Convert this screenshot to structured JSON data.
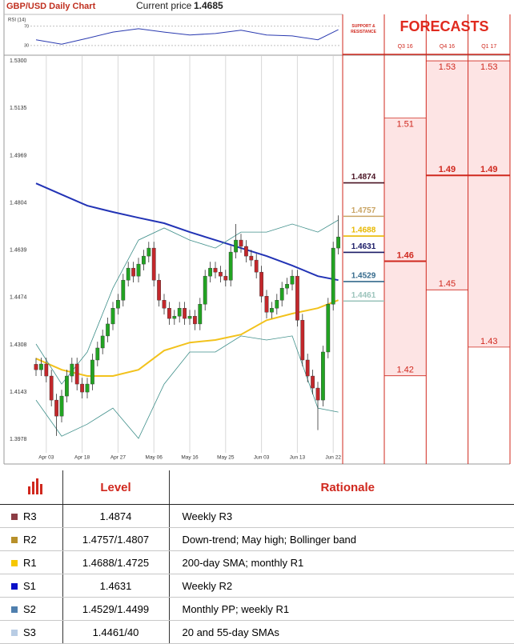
{
  "chart_data": [
    {
      "type": "candlestick",
      "title": "GBP/USD Daily Chart",
      "current_price_label": "Current price",
      "current_price": 1.4685,
      "categories": [
        null,
        null,
        "Apr 03",
        null,
        null,
        null,
        null,
        null,
        null,
        "Apr 18",
        null,
        null,
        null,
        null,
        null,
        null,
        "Apr 27",
        null,
        null,
        null,
        null,
        null,
        null,
        "May 06",
        null,
        null,
        null,
        null,
        null,
        null,
        "May 16",
        null,
        null,
        null,
        null,
        null,
        null,
        "May 25",
        null,
        null,
        null,
        null,
        null,
        null,
        "Jun 03",
        null,
        null,
        null,
        null,
        null,
        null,
        "Jun 13",
        null,
        null,
        null,
        null,
        null,
        null,
        "Jun 22",
        null
      ],
      "open": [
        1.424,
        1.4221,
        1.4241,
        1.4199,
        1.4115,
        1.4059,
        1.4129,
        1.4199,
        1.4241,
        1.4171,
        1.4143,
        1.4171,
        1.4255,
        1.4297,
        1.4339,
        1.4381,
        1.4436,
        1.4464,
        1.4534,
        1.4576,
        1.4548,
        1.459,
        1.4618,
        1.4646,
        1.4534,
        1.4464,
        1.4436,
        1.44,
        1.4408,
        1.4436,
        1.44,
        1.4408,
        1.4381,
        1.445,
        1.4548,
        1.4576,
        1.4562,
        1.4548,
        1.4534,
        1.4632,
        1.4674,
        1.4652,
        1.4618,
        1.4604,
        1.4562,
        1.4478,
        1.4422,
        1.4436,
        1.4464,
        1.4506,
        1.452,
        1.4548,
        1.4394,
        1.4255,
        1.4199,
        1.4157,
        1.4115,
        1.4283,
        1.445,
        1.4646
      ],
      "high": [
        1.4262,
        1.4263,
        1.4263,
        1.4221,
        1.4137,
        1.4151,
        1.4221,
        1.4263,
        1.4263,
        1.4193,
        1.4193,
        1.4277,
        1.4319,
        1.4361,
        1.4403,
        1.4458,
        1.4486,
        1.4556,
        1.4598,
        1.4598,
        1.4612,
        1.464,
        1.4668,
        1.4668,
        1.4556,
        1.4486,
        1.4458,
        1.443,
        1.4458,
        1.4458,
        1.443,
        1.443,
        1.4472,
        1.457,
        1.4598,
        1.4598,
        1.4584,
        1.457,
        1.4654,
        1.473,
        1.4696,
        1.4674,
        1.464,
        1.4626,
        1.4584,
        1.45,
        1.4458,
        1.4486,
        1.4528,
        1.4542,
        1.457,
        1.457,
        1.4416,
        1.4277,
        1.4221,
        1.4179,
        1.4305,
        1.4472,
        1.4668,
        1.476
      ],
      "low": [
        1.4199,
        1.4199,
        1.4177,
        1.4093,
        1.399,
        1.4037,
        1.4107,
        1.4177,
        1.4149,
        1.4121,
        1.4121,
        1.4149,
        1.4233,
        1.4275,
        1.4317,
        1.4359,
        1.4414,
        1.4442,
        1.4512,
        1.4526,
        1.4526,
        1.4568,
        1.4596,
        1.4512,
        1.4442,
        1.4414,
        1.4378,
        1.4378,
        1.4386,
        1.4378,
        1.4378,
        1.4359,
        1.4359,
        1.4428,
        1.4526,
        1.454,
        1.4526,
        1.4512,
        1.4512,
        1.461,
        1.463,
        1.4596,
        1.4582,
        1.454,
        1.4456,
        1.44,
        1.44,
        1.4414,
        1.4442,
        1.4484,
        1.4498,
        1.4372,
        1.4233,
        1.4177,
        1.4135,
        1.401,
        1.4093,
        1.4261,
        1.4428,
        1.4624
      ],
      "close": [
        1.4221,
        1.4241,
        1.4199,
        1.4115,
        1.4059,
        1.4129,
        1.4199,
        1.4241,
        1.4171,
        1.4143,
        1.4171,
        1.4255,
        1.4297,
        1.4339,
        1.4381,
        1.4436,
        1.4464,
        1.4534,
        1.4576,
        1.4548,
        1.459,
        1.4618,
        1.4646,
        1.4534,
        1.4464,
        1.4436,
        1.44,
        1.4408,
        1.4436,
        1.44,
        1.4408,
        1.4381,
        1.445,
        1.4548,
        1.4576,
        1.4562,
        1.4548,
        1.4534,
        1.4632,
        1.4674,
        1.4652,
        1.4618,
        1.4604,
        1.4562,
        1.4478,
        1.4422,
        1.4436,
        1.4464,
        1.4506,
        1.452,
        1.4548,
        1.4394,
        1.4255,
        1.4199,
        1.4157,
        1.4115,
        1.4283,
        1.445,
        1.4646,
        1.4685
      ],
      "up_color": "#22a322",
      "down_color": "#c3272b",
      "ylim": [
        1.3942,
        1.5317
      ],
      "yticks": [
        {
          "value": 1.53,
          "label": "1.5300"
        },
        1.5135,
        1.4969,
        1.4804,
        1.4639,
        1.4474,
        1.4308,
        1.4143,
        1.3978
      ],
      "grid": true,
      "overlays": [
        {
          "color": "#2233b5",
          "width": 2,
          "x": [
            0,
            5,
            10,
            15,
            20,
            25,
            30,
            35,
            40,
            45,
            50,
            55,
            59
          ],
          "values": [
            1.4872,
            1.4833,
            1.4794,
            1.4772,
            1.4752,
            1.4733,
            1.4702,
            1.4674,
            1.4646,
            1.4618,
            1.4585,
            1.4548,
            1.4534
          ]
        },
        {
          "color": "#f2c21c",
          "width": 2,
          "x": [
            0,
            5,
            10,
            15,
            20,
            25,
            30,
            35,
            40,
            45,
            50,
            55,
            59
          ],
          "values": [
            1.426,
            1.4221,
            1.4199,
            1.4199,
            1.4221,
            1.4288,
            1.4316,
            1.4325,
            1.4344,
            1.4394,
            1.4417,
            1.4436,
            1.4464
          ]
        },
        {
          "color": "#3f8f8a",
          "width": 0.8,
          "x": [
            0,
            5,
            10,
            15,
            20,
            25,
            30,
            35,
            40,
            45,
            50,
            55,
            59
          ],
          "values": [
            1.4311,
            1.4171,
            1.4283,
            1.4506,
            1.4674,
            1.4716,
            1.4674,
            1.4646,
            1.4702,
            1.4702,
            1.473,
            1.4702,
            1.4744
          ]
        },
        {
          "color": "#3f8f8a",
          "width": 0.8,
          "x": [
            0,
            5,
            10,
            15,
            20,
            25,
            30,
            35,
            40,
            45,
            50,
            55,
            59
          ],
          "values": [
            1.4115,
            1.3989,
            1.4031,
            1.4087,
            1.3981,
            1.4171,
            1.4283,
            1.4283,
            1.4339,
            1.4325,
            1.4339,
            1.4087,
            1.4073
          ]
        }
      ],
      "levels_title": "SUPPORT & RESISTANCE",
      "levels": [
        {
          "value": 1.4874,
          "color": "#4a1424"
        },
        {
          "value": 1.4757,
          "color": "#c9a464"
        },
        {
          "value": 1.4688,
          "color": "#e8b800"
        },
        {
          "value": 1.4631,
          "color": "#1a1a66"
        },
        {
          "value": 1.4529,
          "color": "#346a8c"
        },
        {
          "value": 1.4461,
          "color": "#9cc4bc"
        }
      ],
      "forecasts_title": "FORECASTS",
      "forecasts": [
        {
          "period": "Q3 16",
          "values": [
            1.51,
            1.46,
            1.42
          ]
        },
        {
          "period": "Q4 16",
          "values": [
            1.53,
            1.49,
            1.45
          ]
        },
        {
          "period": "Q1 17",
          "values": [
            1.53,
            1.49,
            1.43
          ]
        }
      ]
    },
    {
      "type": "line",
      "title": "RSI (14)",
      "x": [
        0,
        5,
        10,
        15,
        20,
        25,
        30,
        35,
        40,
        45,
        50,
        55,
        59
      ],
      "xlim": [
        0,
        59
      ],
      "series": [
        {
          "color": "#2a3ab0",
          "values": [
            42,
            33,
            45,
            58,
            65,
            58,
            52,
            55,
            62,
            52,
            50,
            42,
            63
          ]
        }
      ],
      "ylim": [
        15,
        88
      ],
      "yticks": [
        30,
        70
      ]
    }
  ],
  "table": {
    "header": [
      "Level",
      "Rationale"
    ],
    "rows": [
      {
        "name": "R3",
        "color": "#8c3c44",
        "level": "1.4874",
        "rationale": "Weekly R3"
      },
      {
        "name": "R2",
        "color": "#b8902a",
        "level": "1.4757/1.4807",
        "rationale": "Down-trend; May high; Bollinger band"
      },
      {
        "name": "R1",
        "color": "#f6c700",
        "level": "1.4688/1.4725",
        "rationale": "200-day SMA; monthly R1"
      },
      {
        "name": "S1",
        "color": "#0a10c8",
        "level": "1.4631",
        "rationale": "Weekly R2"
      },
      {
        "name": "S2",
        "color": "#4f7fae",
        "level": "1.4529/1.4499",
        "rationale": "Monthly PP; weekly R1"
      },
      {
        "name": "S3",
        "color": "#b8cce4",
        "level": "1.4461/40",
        "rationale": "20 and 55-day SMAs"
      }
    ]
  }
}
